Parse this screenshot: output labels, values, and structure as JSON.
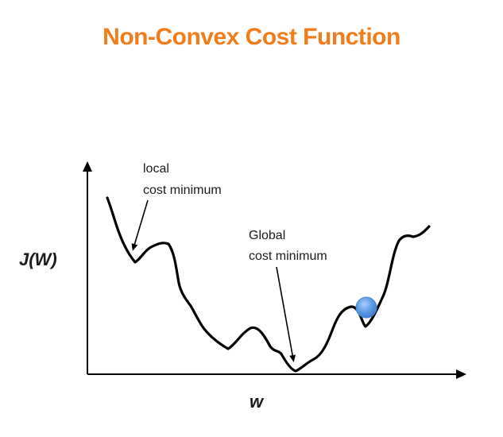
{
  "title": "Non-Convex Cost Function",
  "labels": {
    "y_axis": "J(W)",
    "x_axis": "w",
    "local_line1": "local",
    "local_line2": "cost minimum",
    "global_line1": "Global",
    "global_line2": "cost minimum"
  },
  "colors": {
    "title": "#f07c1b",
    "curve": "#000000",
    "ball": "#5b9be6"
  }
}
